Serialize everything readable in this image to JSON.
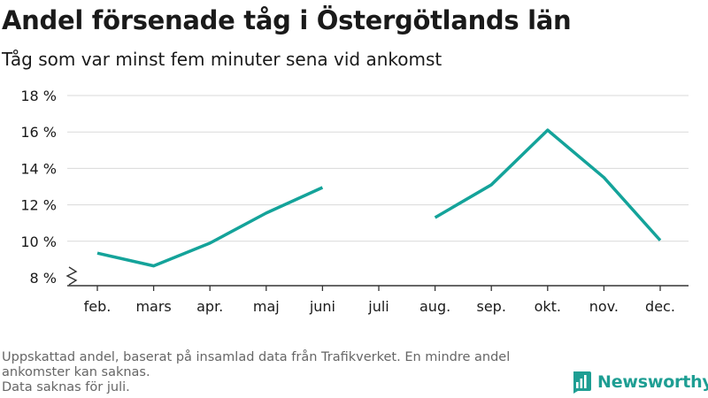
{
  "header": {
    "title": "Andel försenade tåg i Östergötlands län",
    "subtitle": "Tåg som var minst fem minuter sena vid ankomst"
  },
  "footnote": {
    "line1": "Uppskattad andel, baserat på insamlad data från Trafikverket. En mindre andel ankomster kan saknas.",
    "line2": "Data saknas för juli."
  },
  "brand": {
    "name": "Newsworthy",
    "color": "#1e9e93"
  },
  "colors": {
    "line": "#14a39a",
    "grid": "#d9d9d9",
    "axis": "#333333"
  },
  "chart_data": {
    "type": "line",
    "title": "Andel försenade tåg i Östergötlands län",
    "subtitle": "Tåg som var minst fem minuter sena vid ankomst",
    "categories": [
      "feb.",
      "mars",
      "apr.",
      "maj",
      "juni",
      "juli",
      "aug.",
      "sep.",
      "okt.",
      "nov.",
      "dec."
    ],
    "series": [
      {
        "values": [
          9.35,
          8.65,
          9.9,
          11.55,
          12.95,
          null,
          11.3,
          13.1,
          16.1,
          13.5,
          10.05
        ]
      }
    ],
    "y_ticks": [
      8,
      10,
      12,
      14,
      16,
      18
    ],
    "y_tick_labels": [
      "8 %",
      "10 %",
      "12 %",
      "14 %",
      "16 %",
      "18 %"
    ],
    "ylim": [
      8,
      18
    ],
    "y_axis_break": true,
    "grid": true,
    "legend": "none"
  }
}
